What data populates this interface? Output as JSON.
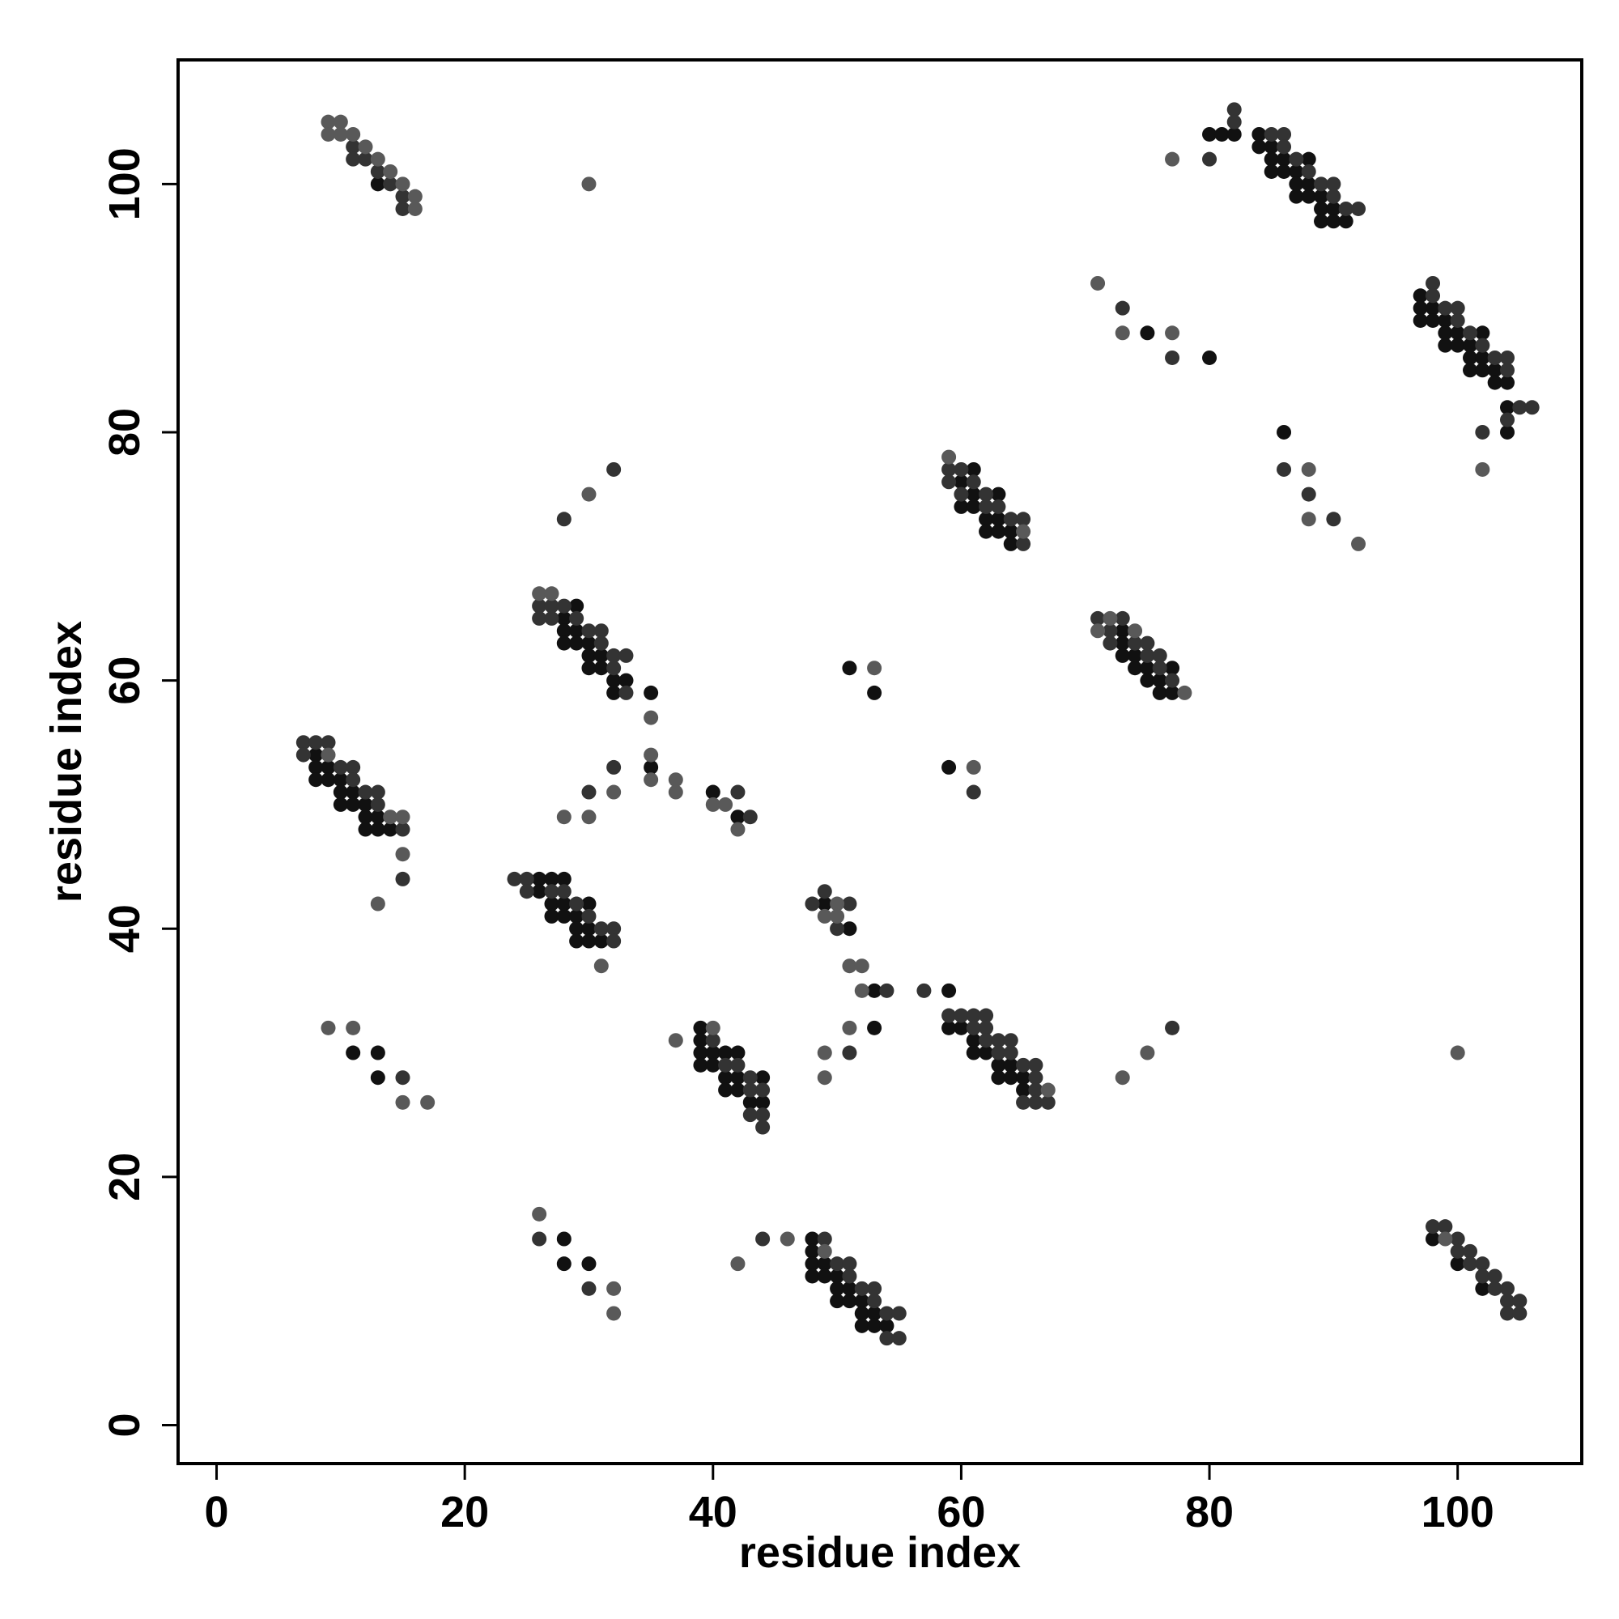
{
  "chart_data": {
    "type": "scatter",
    "xlabel": "residue index",
    "ylabel": "residue index",
    "xlim": [
      -3.1,
      110
    ],
    "ylim": [
      -3.1,
      110
    ],
    "xticks": [
      0,
      20,
      40,
      60,
      80,
      100
    ],
    "yticks": [
      0,
      20,
      40,
      60,
      80,
      100
    ],
    "grid": false,
    "series": [
      {
        "color": "#111111",
        "x": [
          13,
          80,
          81,
          82,
          84,
          84,
          85,
          85,
          86,
          88,
          85,
          86,
          87,
          87,
          88,
          87,
          88,
          89,
          89,
          90,
          89,
          90,
          91,
          75,
          80,
          97,
          97,
          98,
          97,
          98,
          99,
          99,
          100,
          102,
          99,
          100,
          101,
          101,
          102,
          101,
          102,
          103,
          103,
          104,
          104,
          104,
          86,
          61,
          60,
          61,
          63,
          60,
          61,
          62,
          63,
          62,
          63,
          64,
          64,
          29,
          28,
          28,
          29,
          28,
          29,
          30,
          30,
          31,
          30,
          31,
          32,
          33,
          32,
          35,
          35,
          40,
          42,
          51,
          53,
          59,
          73,
          73,
          73,
          74,
          74,
          75,
          77,
          75,
          76,
          76,
          77,
          8,
          8,
          9,
          8,
          9,
          10,
          10,
          11,
          10,
          11,
          12,
          12,
          13,
          12,
          13,
          14,
          26,
          27,
          28,
          26,
          27,
          28,
          30,
          27,
          28,
          29,
          29,
          30,
          29,
          30,
          31,
          49,
          51,
          53,
          59,
          53,
          39,
          39,
          39,
          40,
          41,
          42,
          39,
          40,
          41,
          42,
          44,
          41,
          42,
          43,
          44,
          59,
          60,
          61,
          61,
          62,
          63,
          64,
          63,
          64,
          65,
          65,
          11,
          13,
          13,
          28,
          28,
          30,
          48,
          48,
          48,
          49,
          48,
          49,
          50,
          50,
          51,
          50,
          51,
          52,
          52,
          53,
          52,
          53,
          54,
          98,
          100,
          102
        ],
        "values": [
          100,
          104,
          104,
          104,
          104,
          103,
          103,
          102,
          102,
          102,
          101,
          101,
          101,
          100,
          100,
          99,
          99,
          99,
          98,
          98,
          97,
          97,
          97,
          88,
          86,
          91,
          90,
          90,
          89,
          89,
          89,
          88,
          88,
          88,
          87,
          87,
          87,
          86,
          86,
          85,
          85,
          85,
          84,
          84,
          82,
          80,
          80,
          77,
          76,
          75,
          75,
          74,
          74,
          73,
          73,
          72,
          72,
          72,
          71,
          66,
          65,
          64,
          64,
          63,
          63,
          63,
          62,
          62,
          61,
          61,
          60,
          60,
          59,
          59,
          53,
          51,
          49,
          61,
          59,
          53,
          64,
          63,
          62,
          62,
          61,
          61,
          61,
          60,
          60,
          59,
          59,
          54,
          53,
          53,
          52,
          52,
          52,
          51,
          51,
          50,
          50,
          50,
          49,
          49,
          48,
          48,
          48,
          44,
          44,
          44,
          43,
          42,
          42,
          42,
          41,
          41,
          41,
          40,
          40,
          39,
          39,
          39,
          42,
          40,
          35,
          35,
          32,
          32,
          31,
          30,
          30,
          30,
          30,
          29,
          29,
          28,
          28,
          28,
          27,
          27,
          26,
          26,
          32,
          32,
          31,
          30,
          30,
          29,
          29,
          28,
          28,
          28,
          27,
          30,
          30,
          28,
          15,
          13,
          13,
          15,
          14,
          13,
          13,
          12,
          12,
          12,
          11,
          11,
          10,
          10,
          10,
          9,
          9,
          8,
          8,
          8,
          15,
          13,
          11
        ]
      },
      {
        "color": "#333333",
        "x": [
          11,
          11,
          12,
          13,
          14,
          15,
          15,
          82,
          82,
          80,
          85,
          86,
          86,
          87,
          88,
          89,
          90,
          90,
          91,
          92,
          73,
          77,
          98,
          98,
          99,
          100,
          100,
          101,
          102,
          103,
          104,
          104,
          105,
          106,
          104,
          102,
          86,
          88,
          90,
          59,
          60,
          59,
          61,
          60,
          62,
          62,
          63,
          64,
          65,
          65,
          26,
          27,
          28,
          26,
          27,
          29,
          30,
          31,
          31,
          32,
          33,
          32,
          33,
          32,
          30,
          28,
          32,
          42,
          43,
          61,
          71,
          73,
          72,
          72,
          74,
          75,
          75,
          76,
          76,
          77,
          7,
          8,
          9,
          7,
          10,
          11,
          11,
          12,
          13,
          13,
          15,
          15,
          24,
          25,
          25,
          27,
          28,
          29,
          30,
          31,
          32,
          32,
          48,
          49,
          51,
          50,
          54,
          57,
          51,
          40,
          41,
          42,
          43,
          43,
          44,
          43,
          44,
          44,
          59,
          60,
          61,
          62,
          61,
          62,
          62,
          63,
          64,
          63,
          64,
          65,
          66,
          66,
          66,
          65,
          66,
          67,
          77,
          15,
          26,
          30,
          44,
          49,
          50,
          51,
          51,
          52,
          53,
          53,
          54,
          55,
          54,
          55,
          98,
          99,
          100,
          100,
          101,
          101,
          102,
          102,
          103,
          103,
          104,
          104,
          105,
          104,
          105
        ],
        "values": [
          103,
          102,
          102,
          101,
          100,
          99,
          98,
          106,
          105,
          102,
          104,
          104,
          103,
          102,
          101,
          100,
          100,
          99,
          98,
          98,
          90,
          86,
          92,
          91,
          90,
          90,
          89,
          88,
          87,
          86,
          86,
          85,
          82,
          82,
          81,
          80,
          77,
          75,
          73,
          77,
          77,
          76,
          76,
          75,
          75,
          74,
          74,
          73,
          73,
          71,
          66,
          66,
          66,
          65,
          65,
          65,
          64,
          64,
          63,
          62,
          62,
          61,
          59,
          53,
          51,
          73,
          77,
          51,
          49,
          51,
          65,
          65,
          64,
          63,
          63,
          63,
          62,
          62,
          61,
          60,
          55,
          55,
          55,
          54,
          53,
          53,
          52,
          51,
          51,
          50,
          48,
          44,
          44,
          44,
          43,
          43,
          43,
          42,
          41,
          40,
          40,
          39,
          42,
          43,
          42,
          40,
          35,
          35,
          30,
          31,
          29,
          29,
          28,
          27,
          27,
          25,
          25,
          24,
          33,
          33,
          33,
          33,
          32,
          32,
          31,
          31,
          31,
          30,
          30,
          29,
          29,
          28,
          27,
          26,
          26,
          26,
          32,
          28,
          15,
          11,
          15,
          15,
          13,
          13,
          12,
          11,
          11,
          10,
          9,
          9,
          7,
          7,
          16,
          16,
          15,
          14,
          14,
          13,
          13,
          12,
          12,
          11,
          11,
          10,
          10,
          9,
          9
        ]
      },
      {
        "color": "#595959",
        "x": [
          9,
          10,
          9,
          10,
          11,
          12,
          13,
          14,
          15,
          16,
          16,
          30,
          77,
          71,
          73,
          77,
          102,
          88,
          88,
          92,
          59,
          65,
          30,
          26,
          27,
          35,
          35,
          35,
          37,
          37,
          32,
          30,
          28,
          40,
          41,
          42,
          53,
          61,
          72,
          71,
          74,
          78,
          9,
          14,
          15,
          15,
          13,
          31,
          50,
          49,
          50,
          51,
          52,
          52,
          51,
          49,
          49,
          40,
          37,
          67,
          73,
          75,
          100,
          9,
          11,
          15,
          17,
          26,
          32,
          32,
          42,
          46,
          49,
          99
        ],
        "values": [
          105,
          105,
          104,
          104,
          104,
          103,
          102,
          101,
          100,
          99,
          98,
          100,
          102,
          92,
          88,
          88,
          77,
          77,
          73,
          71,
          78,
          72,
          75,
          67,
          67,
          57,
          54,
          52,
          52,
          51,
          51,
          49,
          49,
          50,
          50,
          48,
          61,
          53,
          65,
          64,
          64,
          59,
          54,
          49,
          49,
          46,
          42,
          37,
          42,
          41,
          41,
          37,
          37,
          35,
          32,
          30,
          28,
          32,
          31,
          27,
          28,
          30,
          30,
          32,
          32,
          26,
          26,
          17,
          11,
          9,
          13,
          15,
          14,
          15
        ]
      }
    ]
  }
}
